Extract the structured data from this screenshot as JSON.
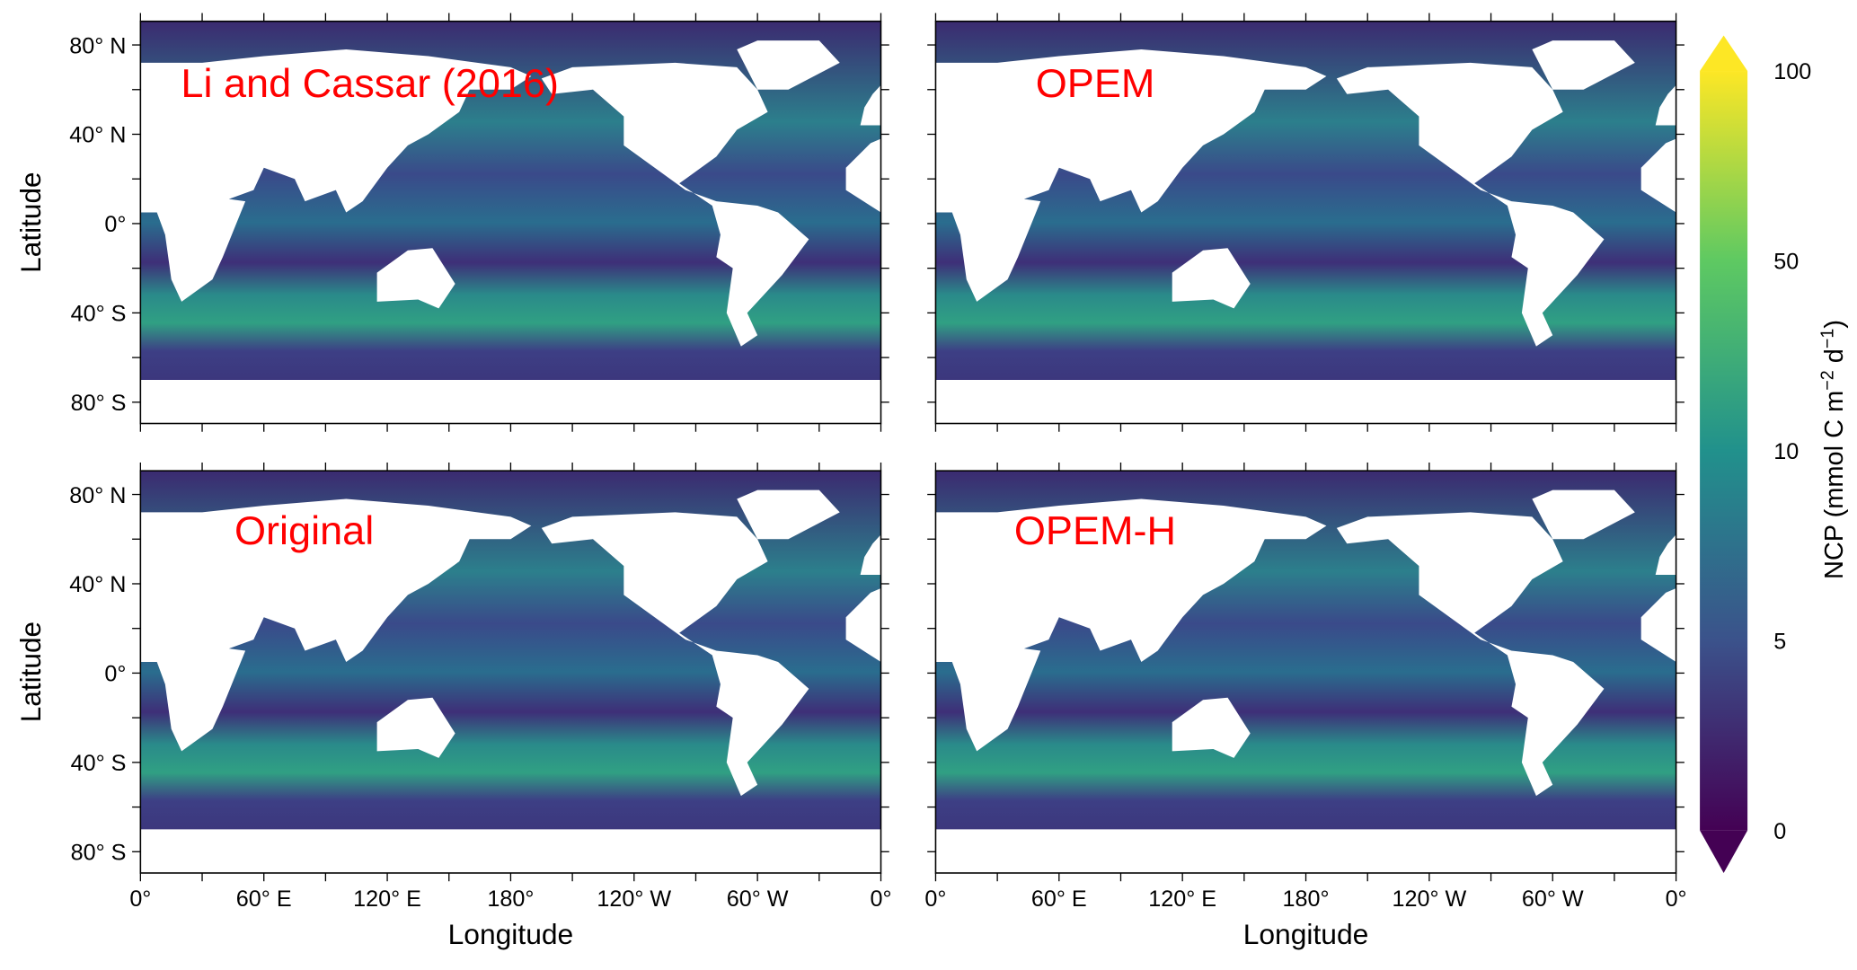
{
  "panels": [
    {
      "label": "Li and Cassar (2016)"
    },
    {
      "label": "OPEM"
    },
    {
      "label": "Original"
    },
    {
      "label": "OPEM-H"
    }
  ],
  "x_axis": {
    "label": "Longitude",
    "ticks": [
      "0°",
      "60° E",
      "120° E",
      "180°",
      "120° W",
      "60° W",
      "0°"
    ]
  },
  "y_axis": {
    "label": "Latitude",
    "ticks": [
      "80° N",
      "40° N",
      "0°",
      "40° S",
      "80° S"
    ]
  },
  "colorbar": {
    "label": {
      "text": "NCP (mmol C m",
      "exp1": "−2",
      "mid": " d",
      "exp2": "−1",
      "end": ")"
    },
    "ticks": [
      0,
      5,
      10,
      50,
      100
    ]
  }
}
